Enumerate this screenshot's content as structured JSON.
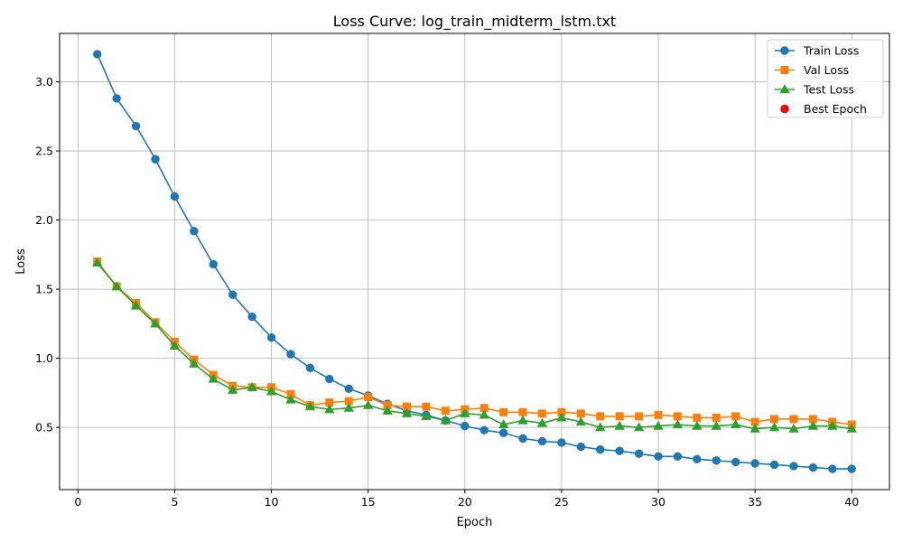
{
  "chart_data": {
    "type": "line",
    "title": "Loss Curve: log_train_midterm_lstm.txt",
    "xlabel": "Epoch",
    "ylabel": "Loss",
    "xlim": [
      -0.95,
      41.95
    ],
    "ylim": [
      0.05,
      3.35
    ],
    "xticks": [
      0,
      5,
      10,
      15,
      20,
      25,
      30,
      35,
      40
    ],
    "xtick_labels": [
      "0",
      "5",
      "10",
      "15",
      "20",
      "25",
      "30",
      "35",
      "40"
    ],
    "yticks": [
      0.5,
      1.0,
      1.5,
      2.0,
      2.5,
      3.0
    ],
    "ytick_labels": [
      "0.5",
      "1.0",
      "1.5",
      "2.0",
      "2.5",
      "3.0"
    ],
    "grid": true,
    "legend_position": "top-right",
    "x": [
      1,
      2,
      3,
      4,
      5,
      6,
      7,
      8,
      9,
      10,
      11,
      12,
      13,
      14,
      15,
      16,
      17,
      18,
      19,
      20,
      21,
      22,
      23,
      24,
      25,
      26,
      27,
      28,
      29,
      30,
      31,
      32,
      33,
      34,
      35,
      36,
      37,
      38,
      39,
      40
    ],
    "series": [
      {
        "name": "Train Loss",
        "color": "#1f77b4",
        "marker": "circle",
        "values": [
          3.2,
          2.88,
          2.68,
          2.44,
          2.17,
          1.92,
          1.68,
          1.46,
          1.3,
          1.15,
          1.03,
          0.93,
          0.85,
          0.78,
          0.73,
          0.67,
          0.62,
          0.59,
          0.55,
          0.51,
          0.48,
          0.46,
          0.42,
          0.4,
          0.39,
          0.36,
          0.34,
          0.33,
          0.31,
          0.29,
          0.29,
          0.27,
          0.26,
          0.25,
          0.24,
          0.23,
          0.22,
          0.21,
          0.2,
          0.2
        ]
      },
      {
        "name": "Val Loss",
        "color": "#ff7f0e",
        "marker": "square",
        "values": [
          1.7,
          1.52,
          1.4,
          1.26,
          1.12,
          0.99,
          0.88,
          0.8,
          0.79,
          0.79,
          0.74,
          0.66,
          0.68,
          0.69,
          0.72,
          0.66,
          0.65,
          0.65,
          0.62,
          0.63,
          0.64,
          0.61,
          0.61,
          0.6,
          0.61,
          0.6,
          0.58,
          0.58,
          0.58,
          0.59,
          0.58,
          0.57,
          0.57,
          0.58,
          0.54,
          0.56,
          0.56,
          0.56,
          0.54,
          0.52
        ]
      },
      {
        "name": "Test Loss",
        "color": "#2ca02c",
        "marker": "triangle",
        "values": [
          1.69,
          1.52,
          1.38,
          1.25,
          1.09,
          0.96,
          0.85,
          0.77,
          0.79,
          0.76,
          0.7,
          0.65,
          0.63,
          0.64,
          0.66,
          0.62,
          0.6,
          0.58,
          0.55,
          0.6,
          0.59,
          0.52,
          0.55,
          0.53,
          0.57,
          0.54,
          0.5,
          0.51,
          0.5,
          0.51,
          0.52,
          0.51,
          0.51,
          0.52,
          0.49,
          0.5,
          0.49,
          0.51,
          0.51,
          0.49
        ]
      }
    ],
    "legend": [
      {
        "name": "Train Loss",
        "color": "#1f77b4",
        "marker": "circle"
      },
      {
        "name": "Val Loss",
        "color": "#ff7f0e",
        "marker": "square"
      },
      {
        "name": "Test Loss",
        "color": "#2ca02c",
        "marker": "triangle"
      },
      {
        "name": "Best Epoch",
        "color": "#ff0000",
        "marker": "dot"
      }
    ]
  }
}
